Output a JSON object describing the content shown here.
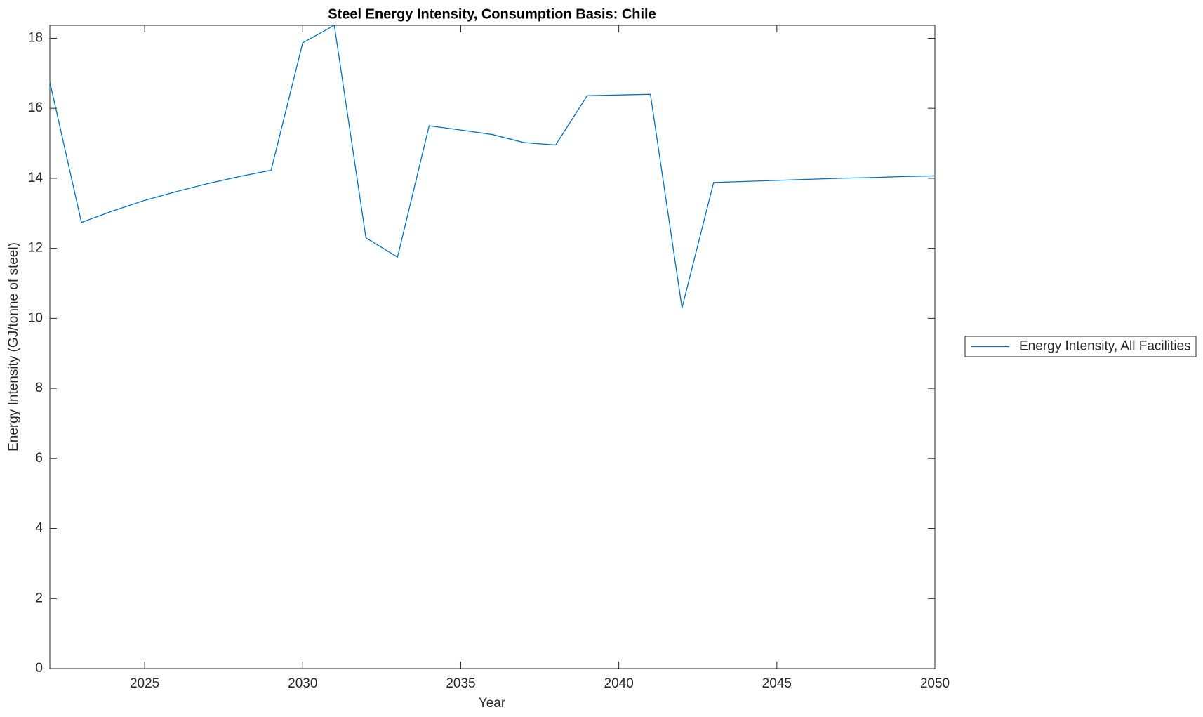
{
  "chart_data": {
    "type": "line",
    "title": "Steel Energy Intensity, Consumption Basis: Chile",
    "x_label": "Year",
    "y_label": "Energy Intensity (GJ/tonne of steel)",
    "x": [
      2022,
      2023,
      2024,
      2025,
      2026,
      2027,
      2028,
      2029,
      2030,
      2031,
      2032,
      2033,
      2034,
      2035,
      2036,
      2037,
      2038,
      2039,
      2040,
      2041,
      2042,
      2043,
      2044,
      2045,
      2046,
      2047,
      2048,
      2049,
      2050
    ],
    "series": [
      {
        "name": "Energy Intensity, All Facilities",
        "color": "#0072bd",
        "values": [
          16.75,
          12.74,
          13.07,
          13.37,
          13.62,
          13.85,
          14.05,
          14.23,
          17.87,
          18.37,
          12.3,
          11.75,
          15.5,
          15.38,
          15.25,
          15.02,
          14.95,
          16.36,
          16.38,
          16.4,
          10.3,
          13.88,
          13.91,
          13.94,
          13.97,
          14.0,
          14.02,
          14.05,
          14.07
        ]
      }
    ],
    "xlim": [
      2022,
      2050
    ],
    "xticks": [
      2025,
      2030,
      2035,
      2040,
      2045,
      2050
    ],
    "ylim": [
      0,
      18.37
    ],
    "yticks": [
      0,
      2,
      4,
      6,
      8,
      10,
      12,
      14,
      16,
      18
    ],
    "grid": false,
    "legend": "right"
  }
}
